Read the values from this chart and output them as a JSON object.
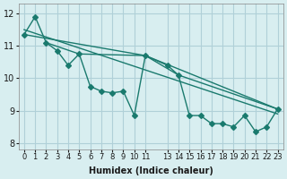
{
  "background_color": "#d8eef0",
  "grid_color": "#b0d0d8",
  "line_color": "#1a7a6e",
  "marker_color": "#1a7a6e",
  "xlabel": "Humidex (Indice chaleur)",
  "ylabel": "",
  "xlim": [
    -0.5,
    23.5
  ],
  "ylim": [
    7.8,
    12.3
  ],
  "yticks": [
    8,
    9,
    10,
    11,
    12
  ],
  "xtick_pos": [
    0,
    1,
    2,
    3,
    4,
    5,
    6,
    7,
    8,
    9,
    10,
    11,
    13,
    14,
    15,
    16,
    17,
    18,
    19,
    20,
    21,
    22,
    23
  ],
  "xtick_labels": [
    "0",
    "1",
    "2",
    "3",
    "4",
    "5",
    "6",
    "7",
    "8",
    "9",
    "10",
    "11",
    "13",
    "14",
    "15",
    "16",
    "17",
    "18",
    "19",
    "20",
    "21",
    "22",
    "23"
  ],
  "series": [
    [
      0,
      11.35
    ],
    [
      1,
      11.9
    ],
    [
      2,
      11.1
    ],
    [
      3,
      10.85
    ],
    [
      4,
      10.4
    ],
    [
      5,
      10.75
    ],
    [
      6,
      9.75
    ],
    [
      7,
      9.6
    ],
    [
      8,
      9.55
    ],
    [
      9,
      9.6
    ],
    [
      10,
      8.85
    ],
    [
      11,
      10.7
    ],
    [
      13,
      10.4
    ],
    [
      14,
      10.1
    ],
    [
      15,
      8.85
    ],
    [
      16,
      8.85
    ],
    [
      17,
      8.6
    ],
    [
      18,
      8.6
    ],
    [
      19,
      8.5
    ],
    [
      20,
      8.85
    ],
    [
      21,
      8.35
    ],
    [
      22,
      8.5
    ],
    [
      23,
      9.05
    ]
  ],
  "line2": [
    [
      0,
      11.35
    ],
    [
      11,
      10.7
    ],
    [
      23,
      9.05
    ]
  ],
  "line3": [
    [
      2,
      11.1
    ],
    [
      5,
      10.75
    ],
    [
      11,
      10.7
    ],
    [
      14,
      10.1
    ],
    [
      23,
      9.05
    ]
  ],
  "trend_line": [
    [
      0,
      11.5
    ],
    [
      23,
      8.9
    ]
  ]
}
